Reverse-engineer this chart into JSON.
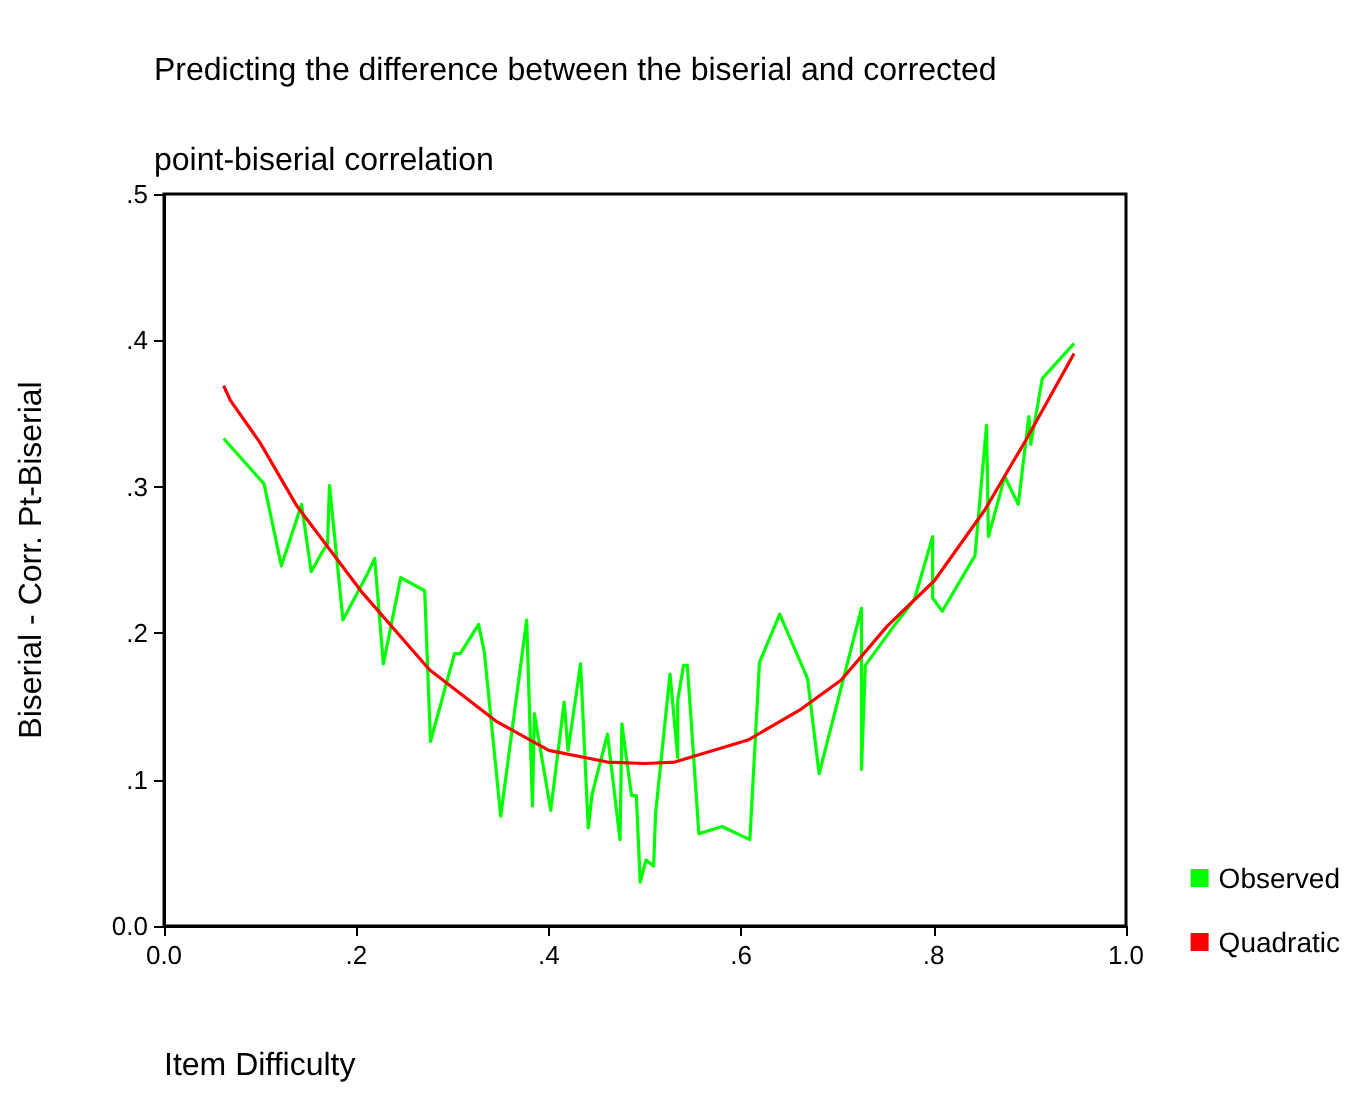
{
  "chart_data": {
    "type": "line",
    "title": "Predicting the difference between the biserial and corrected point-biserial correlation",
    "xlabel": "Item Difficulty",
    "ylabel": "Biserial - Corr. Pt-Biserial",
    "xlim": [
      0,
      1
    ],
    "xticks": [
      {
        "value": 0,
        "label": "0.0"
      },
      {
        "value": 0.2,
        "label": ".2"
      },
      {
        "value": 0.4,
        "label": ".4"
      },
      {
        "value": 0.6,
        "label": ".6"
      },
      {
        "value": 0.8,
        "label": ".8"
      },
      {
        "value": 1,
        "label": "1.0"
      }
    ],
    "ylim": [
      0,
      0.5
    ],
    "yticks": [
      {
        "value": 0,
        "label": "0.0"
      },
      {
        "value": 0.1,
        "label": ".1"
      },
      {
        "value": 0.2,
        "label": ".2"
      },
      {
        "value": 0.3,
        "label": ".3"
      },
      {
        "value": 0.4,
        "label": ".4"
      },
      {
        "value": 0.5,
        "label": ".5"
      }
    ],
    "grid": false,
    "legend": "bottom right",
    "marker": "none",
    "line_style": "solid",
    "series": [
      {
        "name": "Observed",
        "color": "#00ff00",
        "x": [
          0.062,
          0.104,
          0.122,
          0.143,
          0.153,
          0.164,
          0.17,
          0.172,
          0.186,
          0.211,
          0.219,
          0.228,
          0.246,
          0.271,
          0.277,
          0.302,
          0.308,
          0.327,
          0.333,
          0.35,
          0.377,
          0.383,
          0.385,
          0.402,
          0.416,
          0.42,
          0.433,
          0.441,
          0.445,
          0.461,
          0.474,
          0.476,
          0.486,
          0.491,
          0.495,
          0.501,
          0.509,
          0.511,
          0.526,
          0.534,
          0.534,
          0.54,
          0.544,
          0.556,
          0.58,
          0.609,
          0.619,
          0.64,
          0.669,
          0.681,
          0.725,
          0.725,
          0.729,
          0.76,
          0.78,
          0.799,
          0.799,
          0.809,
          0.843,
          0.855,
          0.857,
          0.874,
          0.888,
          0.899,
          0.901,
          0.913,
          0.946
        ],
        "values": [
          0.333,
          0.302,
          0.246,
          0.288,
          0.242,
          0.255,
          0.261,
          0.301,
          0.209,
          0.24,
          0.251,
          0.179,
          0.238,
          0.229,
          0.126,
          0.186,
          0.186,
          0.206,
          0.187,
          0.075,
          0.209,
          0.082,
          0.145,
          0.079,
          0.153,
          0.12,
          0.179,
          0.067,
          0.09,
          0.131,
          0.059,
          0.138,
          0.089,
          0.089,
          0.03,
          0.045,
          0.041,
          0.077,
          0.172,
          0.115,
          0.154,
          0.178,
          0.178,
          0.063,
          0.068,
          0.059,
          0.18,
          0.213,
          0.169,
          0.104,
          0.217,
          0.107,
          0.178,
          0.206,
          0.223,
          0.266,
          0.224,
          0.215,
          0.253,
          0.342,
          0.266,
          0.307,
          0.288,
          0.348,
          0.329,
          0.374,
          0.398
        ]
      },
      {
        "name": "Quadratic",
        "color": "#ff0000",
        "x": [
          0.062,
          0.069,
          0.1,
          0.138,
          0.207,
          0.276,
          0.345,
          0.4,
          0.461,
          0.5,
          0.531,
          0.607,
          0.662,
          0.704,
          0.752,
          0.801,
          0.853,
          0.896,
          0.946
        ],
        "values": [
          0.369,
          0.359,
          0.33,
          0.287,
          0.227,
          0.175,
          0.14,
          0.12,
          0.112,
          0.111,
          0.112,
          0.127,
          0.148,
          0.168,
          0.205,
          0.236,
          0.284,
          0.332,
          0.391
        ]
      }
    ]
  }
}
